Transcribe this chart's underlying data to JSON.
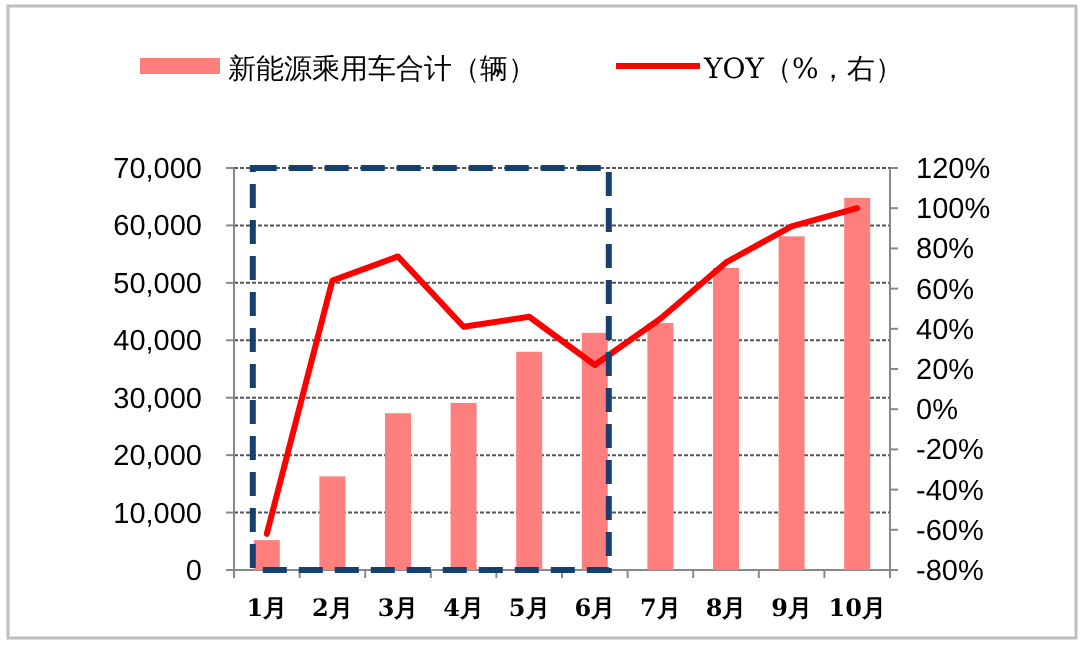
{
  "chart_data": {
    "type": "bar",
    "categories": [
      "1月",
      "2月",
      "3月",
      "4月",
      "5月",
      "6月",
      "7月",
      "8月",
      "9月",
      "10月"
    ],
    "series": [
      {
        "name": "新能源乘用车合计（辆）",
        "color": "#ff7f7f",
        "values": [
          5200,
          16300,
          27300,
          29100,
          38000,
          41300,
          43000,
          52600,
          58100,
          64800
        ]
      },
      {
        "name": "YOY（%，右）",
        "type": "line",
        "axis": "y2",
        "color": "#ff0000",
        "values": [
          -62,
          64,
          76,
          41,
          46,
          22,
          45,
          73,
          91,
          100
        ]
      }
    ],
    "ylim": [
      0,
      70000
    ],
    "yticks": [
      {
        "value": 0,
        "label": "0"
      },
      {
        "value": 10000,
        "label": "10,000"
      },
      {
        "value": 20000,
        "label": "20,000"
      },
      {
        "value": 30000,
        "label": "30,000"
      },
      {
        "value": 40000,
        "label": "40,000"
      },
      {
        "value": 50000,
        "label": "50,000"
      },
      {
        "value": 60000,
        "label": "60,000"
      },
      {
        "value": 70000,
        "label": "70,000"
      }
    ],
    "y2lim": [
      -80,
      120
    ],
    "y2ticks": [
      {
        "value": -80,
        "label": "-80%"
      },
      {
        "value": -60,
        "label": "-60%"
      },
      {
        "value": -40,
        "label": "-40%"
      },
      {
        "value": -20,
        "label": "-20%"
      },
      {
        "value": 0,
        "label": "0%"
      },
      {
        "value": 20,
        "label": "20%"
      },
      {
        "value": 40,
        "label": "40%"
      },
      {
        "value": 60,
        "label": "60%"
      },
      {
        "value": 80,
        "label": "80%"
      },
      {
        "value": 100,
        "label": "100%"
      },
      {
        "value": 120,
        "label": "120%"
      }
    ],
    "grid": "y",
    "legend": "top",
    "marker": "none",
    "line_style": "solid"
  }
}
